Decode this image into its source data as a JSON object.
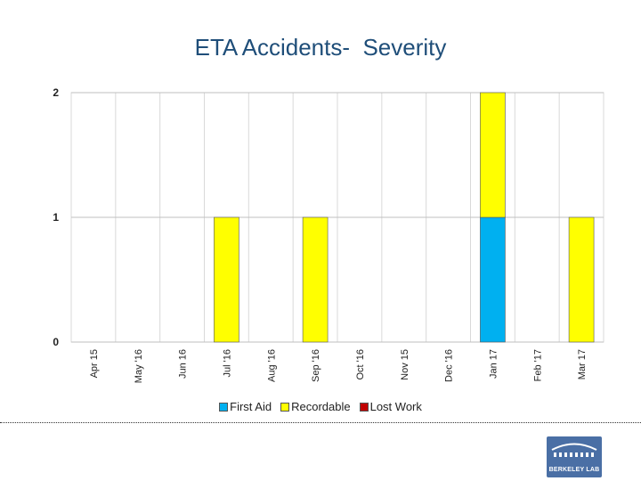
{
  "chart_data": {
    "type": "bar",
    "stacked": true,
    "title": "ETA Accidents-  Severity",
    "xlabel": "",
    "ylabel": "",
    "categories": [
      "Apr 15",
      "May '16",
      "Jun 16",
      "Jul '16",
      "Aug '16",
      "Sep '16",
      "Oct '16",
      "Nov 15",
      "Dec '16",
      "Jan 17",
      "Feb '17",
      "Mar 17"
    ],
    "series": [
      {
        "name": "First Aid",
        "color": "#00b0f0",
        "values": [
          0,
          0,
          0,
          0,
          0,
          0,
          0,
          0,
          0,
          1,
          0,
          0
        ]
      },
      {
        "name": "Recordable",
        "color": "#ffff00",
        "values": [
          0,
          0,
          0,
          1,
          0,
          1,
          0,
          0,
          0,
          1,
          0,
          1
        ]
      },
      {
        "name": "Lost Work",
        "color": "#c00000",
        "values": [
          0,
          0,
          0,
          0,
          0,
          0,
          0,
          0,
          0,
          0,
          0,
          0
        ]
      }
    ],
    "ylim": [
      0,
      2
    ],
    "yticks": [
      0,
      1,
      2
    ],
    "legend_position": "bottom",
    "grid": true
  },
  "logo": {
    "text": "BERKELEY LAB"
  }
}
